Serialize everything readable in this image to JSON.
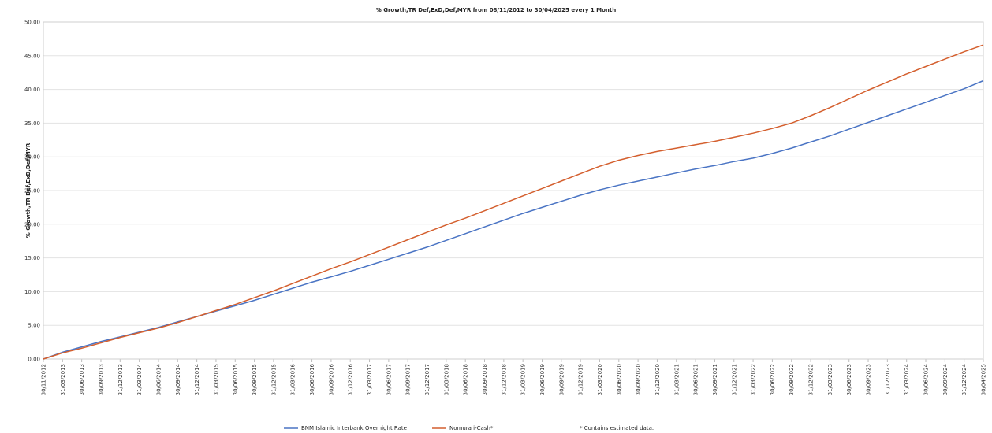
{
  "chart_data": {
    "type": "line",
    "title": "% Growth,TR Def,ExD,Def,MYR from 08/11/2012 to 30/04/2025 every 1 Month",
    "ylabel": "% Growth,TR Def,ExD,Def,MYR",
    "ylim": [
      0,
      50
    ],
    "yticks": [
      "0.00",
      "5.00",
      "10.00",
      "15.00",
      "20.00",
      "25.00",
      "30.00",
      "35.00",
      "40.00",
      "45.00",
      "50.00"
    ],
    "categories": [
      "30/11/2012",
      "31/03/2013",
      "30/06/2013",
      "30/09/2013",
      "31/12/2013",
      "31/03/2014",
      "30/06/2014",
      "30/09/2014",
      "31/12/2014",
      "31/03/2015",
      "30/06/2015",
      "30/09/2015",
      "31/12/2015",
      "31/03/2016",
      "30/06/2016",
      "30/09/2016",
      "31/12/2016",
      "31/03/2017",
      "30/06/2017",
      "30/09/2017",
      "31/12/2017",
      "31/03/2018",
      "30/06/2018",
      "30/09/2018",
      "31/12/2018",
      "31/03/2019",
      "30/06/2019",
      "30/09/2019",
      "31/12/2019",
      "31/03/2020",
      "30/06/2020",
      "30/09/2020",
      "31/12/2020",
      "31/03/2021",
      "30/06/2021",
      "30/09/2021",
      "31/12/2021",
      "31/03/2022",
      "30/06/2022",
      "30/09/2022",
      "31/12/2022",
      "31/03/2023",
      "30/06/2023",
      "30/09/2023",
      "31/12/2023",
      "31/03/2024",
      "30/06/2024",
      "30/09/2024",
      "31/12/2024",
      "30/04/2025"
    ],
    "series": [
      {
        "name": "BNM Islamic Interbank Overnight Rate",
        "color": "#4a74c4",
        "values": [
          0.0,
          1.0,
          1.8,
          2.6,
          3.3,
          4.0,
          4.7,
          5.5,
          6.3,
          7.1,
          7.9,
          8.7,
          9.6,
          10.5,
          11.4,
          12.2,
          13.0,
          13.9,
          14.8,
          15.7,
          16.6,
          17.6,
          18.6,
          19.6,
          20.6,
          21.6,
          22.5,
          23.4,
          24.3,
          25.1,
          25.8,
          26.4,
          27.0,
          27.6,
          28.2,
          28.7,
          29.3,
          29.8,
          30.5,
          31.3,
          32.2,
          33.1,
          34.1,
          35.1,
          36.1,
          37.1,
          38.1,
          39.1,
          40.1,
          41.3
        ]
      },
      {
        "name": "Nomura i-Cash*",
        "color": "#d45f2e",
        "values": [
          0.0,
          0.9,
          1.6,
          2.4,
          3.2,
          3.9,
          4.6,
          5.4,
          6.3,
          7.2,
          8.1,
          9.1,
          10.1,
          11.2,
          12.3,
          13.4,
          14.4,
          15.5,
          16.6,
          17.7,
          18.8,
          19.9,
          20.9,
          22.0,
          23.1,
          24.2,
          25.3,
          26.4,
          27.5,
          28.6,
          29.5,
          30.2,
          30.8,
          31.3,
          31.8,
          32.3,
          32.9,
          33.5,
          34.2,
          35.0,
          36.1,
          37.3,
          38.6,
          39.9,
          41.1,
          42.3,
          43.4,
          44.5,
          45.6,
          46.6
        ]
      }
    ],
    "legend_placement": "bottom-center",
    "footnote": "* Contains estimated data.",
    "grid": true
  }
}
